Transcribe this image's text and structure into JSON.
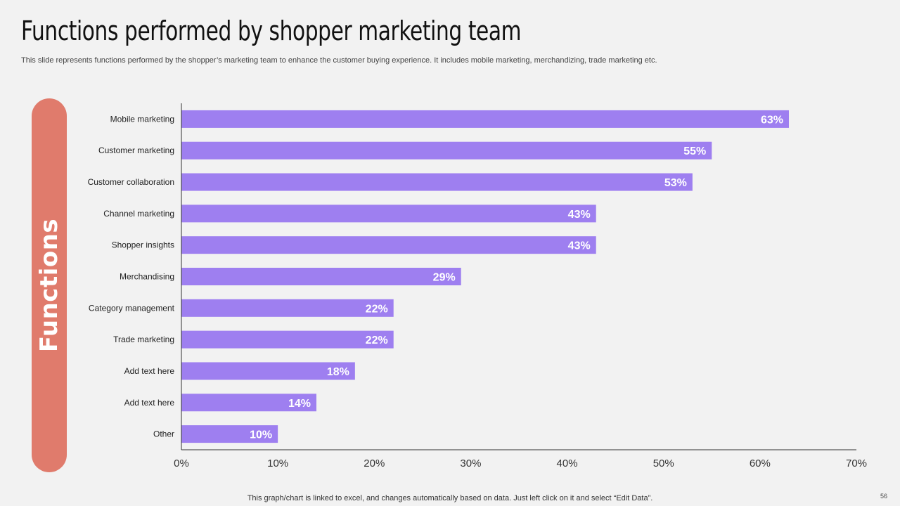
{
  "slide": {
    "title": "Functions performed by shopper marketing team",
    "subtitle": "This slide represents functions performed by the shopper’s marketing team to enhance the customer buying experience. It includes mobile marketing, merchandizing, trade marketing etc.",
    "side_label": "Functions",
    "footnote": "This graph/chart is linked to excel, and changes automatically based on data. Just left click on it and select “Edit Data”.",
    "page_number": "56"
  },
  "colors": {
    "bar": "#9e7ff0",
    "side_pill": "#e07b6c",
    "axis": "#333333"
  },
  "chart_data": {
    "type": "bar",
    "orientation": "horizontal",
    "categories": [
      "Mobile marketing",
      "Customer marketing",
      "Customer collaboration",
      "Channel marketing",
      "Shopper insights",
      "Merchandising",
      "Category management",
      "Trade marketing",
      "Add text here",
      "Add text here",
      "Other"
    ],
    "values": [
      63,
      55,
      53,
      43,
      43,
      29,
      22,
      22,
      18,
      14,
      10
    ],
    "value_labels": [
      "63%",
      "55%",
      "53%",
      "43%",
      "43%",
      "29%",
      "22%",
      "22%",
      "18%",
      "14%",
      "10%"
    ],
    "xlim": [
      0,
      70
    ],
    "x_ticks": [
      "0%",
      "10%",
      "20%",
      "30%",
      "40%",
      "50%",
      "60%",
      "70%"
    ],
    "title": "",
    "xlabel": "",
    "ylabel": "",
    "grid": false,
    "legend": "none"
  }
}
